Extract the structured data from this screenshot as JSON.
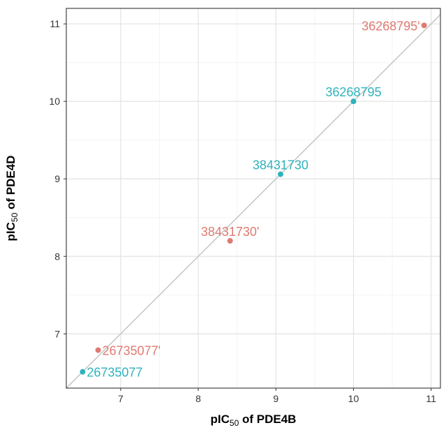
{
  "chart_data": {
    "type": "scatter",
    "title": "",
    "xlabel": {
      "main": "pIC",
      "sub": "50",
      "rest": " of PDE4B"
    },
    "ylabel": {
      "main": "pIC",
      "sub": "50",
      "rest": " of PDE4D"
    },
    "xlim": [
      6.3,
      11.12
    ],
    "ylim": [
      6.3,
      11.2
    ],
    "x_ticks": [
      7,
      8,
      9,
      10,
      11
    ],
    "y_ticks": [
      7,
      8,
      9,
      10,
      11
    ],
    "x_tick_labels": [
      "7",
      "8",
      "9",
      "10",
      "11"
    ],
    "y_tick_labels": [
      "7",
      "8",
      "9",
      "10",
      "11"
    ],
    "grid": true,
    "reference_line": {
      "type": "identity",
      "color": "#c8c8c8"
    },
    "series": [
      {
        "color": "#e07a71",
        "points": [
          {
            "x": 6.71,
            "y": 6.79,
            "label": "26735077'"
          },
          {
            "x": 8.41,
            "y": 8.2,
            "label": "38431730'"
          },
          {
            "x": 10.91,
            "y": 10.98,
            "label": "36268795'"
          }
        ]
      },
      {
        "color": "#2eb3bd",
        "points": [
          {
            "x": 6.51,
            "y": 6.51,
            "label": "26735077"
          },
          {
            "x": 9.06,
            "y": 9.06,
            "label": "38431730"
          },
          {
            "x": 10.0,
            "y": 10.0,
            "label": "36268795"
          }
        ]
      }
    ]
  }
}
